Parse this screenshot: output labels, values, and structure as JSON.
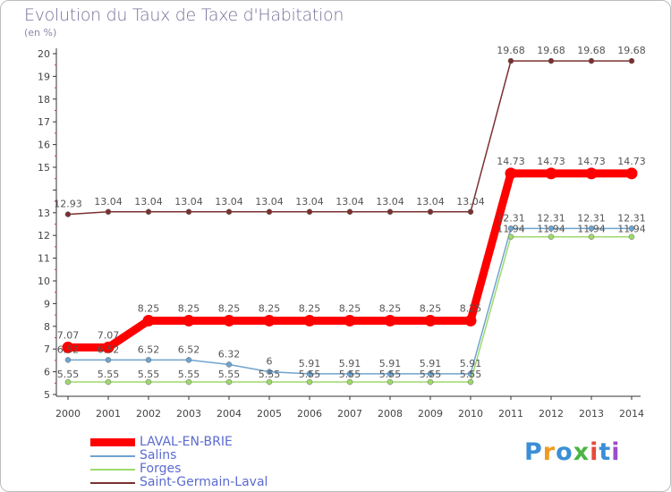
{
  "title": "Evolution du Taux de Taxe d'Habitation",
  "subtitle": "(en %)",
  "brand": "Proxiti",
  "chart_data": {
    "type": "line",
    "x": [
      "2000",
      "2001",
      "2002",
      "2003",
      "2004",
      "2005",
      "2006",
      "2007",
      "2008",
      "2009",
      "2010",
      "2011",
      "2012",
      "2013",
      "2014"
    ],
    "ylim": [
      5,
      20
    ],
    "yticks": [
      "5",
      "6",
      "7",
      "8",
      "9",
      "10",
      "11",
      "12",
      "13",
      "15",
      "16",
      "17",
      "18",
      "19",
      "20"
    ],
    "ytick_values": [
      5,
      6,
      7,
      8,
      9,
      10,
      11,
      12,
      13,
      15,
      16,
      17,
      18,
      19,
      20
    ],
    "grid": false,
    "legend_position": "bottom-left",
    "series": [
      {
        "name": "Saint-Germain-Laval",
        "color": "#7b3030",
        "values": [
          12.93,
          13.04,
          13.04,
          13.04,
          13.04,
          13.04,
          13.04,
          13.04,
          13.04,
          13.04,
          13.04,
          19.68,
          19.68,
          19.68,
          19.68
        ],
        "labels": [
          "12.93",
          "13.04",
          "13.04",
          "13.04",
          "13.04",
          "13.04",
          "13.04",
          "13.04",
          "13.04",
          "13.04",
          "13.04",
          "19.68",
          "19.68",
          "19.68",
          "19.68"
        ]
      },
      {
        "name": "Salins",
        "color": "#6ea4cf",
        "values": [
          6.52,
          6.52,
          6.52,
          6.52,
          6.32,
          6,
          5.91,
          5.91,
          5.91,
          5.91,
          5.91,
          12.31,
          12.31,
          12.31,
          12.31
        ],
        "labels": [
          "6.52",
          "6.52",
          "6.52",
          "6.52",
          "6.32",
          "6",
          "5.91",
          "5.91",
          "5.91",
          "5.91",
          "5.91",
          "12.31",
          "12.31",
          "12.31",
          "12.31"
        ]
      },
      {
        "name": "Forges",
        "color": "#9ed96b",
        "values": [
          5.55,
          5.55,
          5.55,
          5.55,
          5.55,
          5.55,
          5.55,
          5.55,
          5.55,
          5.55,
          5.55,
          11.94,
          11.94,
          11.94,
          11.94
        ],
        "labels": [
          "5.55",
          "5.55",
          "5.55",
          "5.55",
          "5.55",
          "5.55",
          "5.55",
          "5.55",
          "5.55",
          "5.55",
          "5.55",
          "11.94",
          "11.94",
          "11.94",
          "11.94"
        ]
      },
      {
        "name": "LAVAL-EN-BRIE",
        "color": "#ff0000",
        "values": [
          7.07,
          7.07,
          8.25,
          8.25,
          8.25,
          8.25,
          8.25,
          8.25,
          8.25,
          8.25,
          8.25,
          14.73,
          14.73,
          14.73,
          14.73
        ],
        "labels": [
          "7.07",
          "7.07",
          "8.25",
          "8.25",
          "8.25",
          "8.25",
          "8.25",
          "8.25",
          "8.25",
          "8.25",
          "8.25",
          "14.73",
          "14.73",
          "14.73",
          "14.73"
        ]
      }
    ]
  },
  "legend": [
    {
      "label": "LAVAL-EN-BRIE",
      "color": "#ff0000",
      "thickness": 9
    },
    {
      "label": "Salins",
      "color": "#6ea4cf",
      "thickness": 2
    },
    {
      "label": "Forges",
      "color": "#9ed96b",
      "thickness": 2
    },
    {
      "label": "Saint-Germain-Laval",
      "color": "#7b3030",
      "thickness": 2
    }
  ]
}
